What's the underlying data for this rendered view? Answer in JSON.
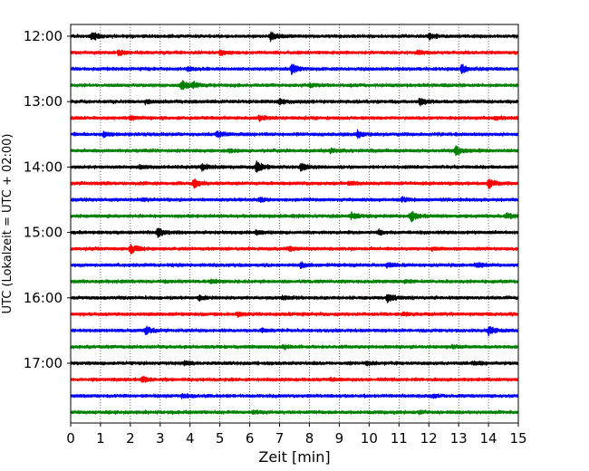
{
  "chart_data": {
    "type": "line",
    "title": "",
    "xlabel": "Zeit  [min]",
    "ylabel": "UTC (Lokalzeit = UTC + 02:00)",
    "xlim": [
      0,
      15
    ],
    "x_ticks": [
      "0",
      "1",
      "2",
      "3",
      "4",
      "5",
      "6",
      "7",
      "8",
      "9",
      "10",
      "11",
      "12",
      "13",
      "14",
      "15"
    ],
    "y_tick_labels": [
      "12:00",
      "13:00",
      "14:00",
      "15:00",
      "16:00",
      "17:00"
    ],
    "grid": "vertical dotted at each minute",
    "trace_interval_minutes": 15,
    "trace_colors": [
      "#000000",
      "#ff0000",
      "#0000ff",
      "#008000"
    ],
    "series": [
      {
        "start": "12:00",
        "color": "#000000",
        "events": [
          [
            0.7,
            1.0
          ],
          [
            6.7,
            1.0
          ],
          [
            12.0,
            0.8
          ]
        ]
      },
      {
        "start": "12:15",
        "color": "#ff0000",
        "events": [
          [
            1.6,
            0.6
          ],
          [
            5.0,
            0.5
          ],
          [
            11.6,
            0.5
          ]
        ]
      },
      {
        "start": "12:30",
        "color": "#0000ff",
        "events": [
          [
            7.4,
            1.3
          ],
          [
            13.1,
            1.0
          ],
          [
            3.9,
            0.5
          ]
        ]
      },
      {
        "start": "12:45",
        "color": "#008000",
        "events": [
          [
            3.7,
            1.3
          ],
          [
            4.1,
            0.6
          ],
          [
            8.0,
            0.4
          ]
        ]
      },
      {
        "start": "13:00",
        "color": "#000000",
        "events": [
          [
            11.7,
            1.0
          ],
          [
            7.0,
            0.5
          ],
          [
            2.5,
            0.4
          ]
        ]
      },
      {
        "start": "13:15",
        "color": "#ff0000",
        "events": [
          [
            6.3,
            0.5
          ],
          [
            14.2,
            0.4
          ],
          [
            2.0,
            0.4
          ]
        ]
      },
      {
        "start": "13:30",
        "color": "#0000ff",
        "events": [
          [
            4.9,
            0.8
          ],
          [
            9.6,
            0.8
          ],
          [
            1.1,
            0.5
          ]
        ]
      },
      {
        "start": "13:45",
        "color": "#008000",
        "events": [
          [
            12.9,
            1.0
          ],
          [
            5.3,
            0.4
          ],
          [
            8.7,
            0.4
          ]
        ]
      },
      {
        "start": "14:00",
        "color": "#000000",
        "events": [
          [
            6.2,
            1.4
          ],
          [
            7.7,
            0.9
          ],
          [
            4.4,
            0.9
          ],
          [
            2.3,
            0.4
          ]
        ]
      },
      {
        "start": "14:15",
        "color": "#ff0000",
        "events": [
          [
            4.1,
            1.1
          ],
          [
            14.0,
            1.1
          ],
          [
            9.3,
            0.4
          ]
        ]
      },
      {
        "start": "14:30",
        "color": "#0000ff",
        "events": [
          [
            6.3,
            0.5
          ],
          [
            11.1,
            0.4
          ],
          [
            2.4,
            0.3
          ]
        ]
      },
      {
        "start": "14:45",
        "color": "#008000",
        "events": [
          [
            11.4,
            1.3
          ],
          [
            9.4,
            0.8
          ],
          [
            14.6,
            0.6
          ]
        ]
      },
      {
        "start": "15:00",
        "color": "#000000",
        "events": [
          [
            2.9,
            1.1
          ],
          [
            10.3,
            0.5
          ],
          [
            6.2,
            0.4
          ]
        ]
      },
      {
        "start": "15:15",
        "color": "#ff0000",
        "events": [
          [
            2.0,
            1.2
          ],
          [
            7.3,
            0.4
          ],
          [
            12.1,
            0.3
          ]
        ]
      },
      {
        "start": "15:30",
        "color": "#0000ff",
        "events": [
          [
            7.7,
            0.5
          ],
          [
            10.6,
            0.5
          ],
          [
            13.6,
            0.5
          ]
        ]
      },
      {
        "start": "15:45",
        "color": "#008000",
        "events": [
          [
            4.7,
            0.4
          ],
          [
            11.2,
            0.3
          ]
        ]
      },
      {
        "start": "16:00",
        "color": "#000000",
        "events": [
          [
            10.6,
            1.1
          ],
          [
            4.3,
            0.5
          ],
          [
            7.1,
            0.4
          ]
        ]
      },
      {
        "start": "16:15",
        "color": "#ff0000",
        "events": [
          [
            5.6,
            0.5
          ],
          [
            11.1,
            0.4
          ]
        ]
      },
      {
        "start": "16:30",
        "color": "#0000ff",
        "events": [
          [
            2.5,
            1.0
          ],
          [
            14.0,
            1.0
          ],
          [
            6.4,
            0.4
          ]
        ]
      },
      {
        "start": "16:45",
        "color": "#008000",
        "events": [
          [
            7.1,
            0.4
          ],
          [
            12.8,
            0.3
          ]
        ]
      },
      {
        "start": "17:00",
        "color": "#000000",
        "events": [
          [
            3.8,
            0.4
          ],
          [
            9.9,
            0.4
          ],
          [
            13.5,
            0.4
          ]
        ]
      },
      {
        "start": "17:15",
        "color": "#ff0000",
        "events": [
          [
            2.4,
            0.5
          ],
          [
            8.7,
            0.3
          ]
        ]
      },
      {
        "start": "17:30",
        "color": "#0000ff",
        "events": [
          [
            3.7,
            0.4
          ],
          [
            12.1,
            0.3
          ]
        ]
      },
      {
        "start": "17:45",
        "color": "#008000",
        "events": [
          [
            6.1,
            0.3
          ],
          [
            11.7,
            0.3
          ]
        ]
      }
    ]
  }
}
